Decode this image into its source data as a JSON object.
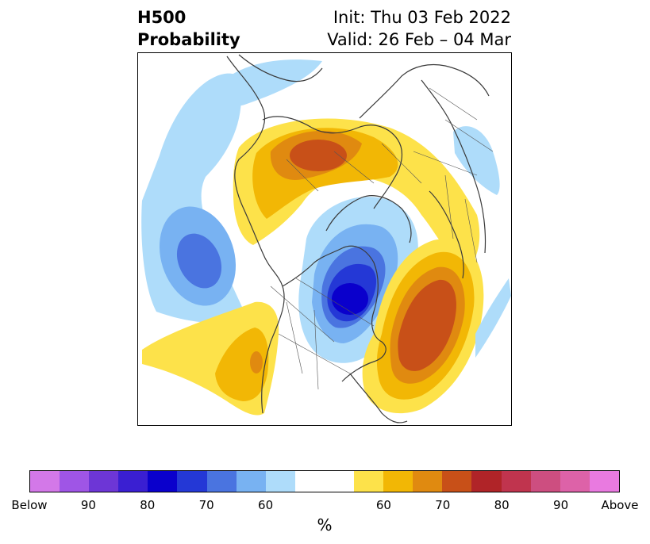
{
  "title": {
    "line1": "H500",
    "line2": "Probability",
    "init": "Init: Thu 03 Feb 2022",
    "valid": "Valid: 26 Feb – 04 Mar"
  },
  "map": {
    "projection": "north-polar-stereographic",
    "anomaly_centers": [
      {
        "region": "Northern Europe / Scandinavia",
        "sign": "above",
        "peak_percent": 70
      },
      {
        "region": "North Pacific (Aleutians)",
        "sign": "below",
        "peak_percent": 70
      },
      {
        "region": "Canadian Arctic / Hudson Bay",
        "sign": "below",
        "peak_percent": 80
      },
      {
        "region": "North Atlantic (off US east coast)",
        "sign": "above",
        "peak_percent": 70
      },
      {
        "region": "Western US",
        "sign": "above",
        "peak_percent": 70
      },
      {
        "region": "Central Asia",
        "sign": "below",
        "peak_percent": 60
      }
    ]
  },
  "colorbar": {
    "colors": [
      "#d378e8",
      "#9f55e6",
      "#6d36d6",
      "#3a1fd2",
      "#0a00cc",
      "#2438d6",
      "#4a74e0",
      "#78b2f2",
      "#aedcfa",
      "#ffffff",
      "#ffffff",
      "#fde24a",
      "#f2b705",
      "#e08a10",
      "#c85018",
      "#b02428",
      "#c0344e",
      "#cd4e80",
      "#dd62a8",
      "#e97ae0"
    ],
    "tick_labels": [
      "Below",
      "90",
      "80",
      "70",
      "60",
      "",
      "60",
      "70",
      "80",
      "90",
      "Above"
    ],
    "unit": "%"
  }
}
